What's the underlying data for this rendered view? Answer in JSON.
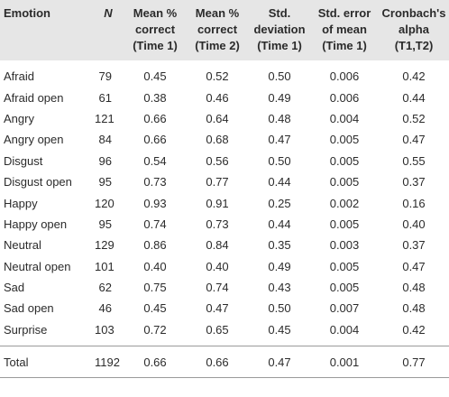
{
  "table": {
    "headers": {
      "emotion": "Emotion",
      "n": "N",
      "mean_t1": [
        "Mean %",
        "correct",
        "(Time 1)"
      ],
      "mean_t2": [
        "Mean %",
        "correct",
        "(Time 2)"
      ],
      "sd_t1": [
        "Std.",
        "deviation",
        "(Time 1)"
      ],
      "se_t1": [
        "Std. error",
        "of mean",
        "(Time 1)"
      ],
      "alpha": [
        "Cronbach's",
        "alpha",
        "(T1,T2)"
      ]
    },
    "rows": [
      {
        "emotion": "Afraid",
        "n": "79",
        "mean_t1": "0.45",
        "mean_t2": "0.52",
        "sd_t1": "0.50",
        "se_t1": "0.006",
        "alpha": "0.42"
      },
      {
        "emotion": "Afraid open",
        "n": "61",
        "mean_t1": "0.38",
        "mean_t2": "0.46",
        "sd_t1": "0.49",
        "se_t1": "0.006",
        "alpha": "0.44"
      },
      {
        "emotion": "Angry",
        "n": "121",
        "mean_t1": "0.66",
        "mean_t2": "0.64",
        "sd_t1": "0.48",
        "se_t1": "0.004",
        "alpha": "0.52"
      },
      {
        "emotion": "Angry open",
        "n": "84",
        "mean_t1": "0.66",
        "mean_t2": "0.68",
        "sd_t1": "0.47",
        "se_t1": "0.005",
        "alpha": "0.47"
      },
      {
        "emotion": "Disgust",
        "n": "96",
        "mean_t1": "0.54",
        "mean_t2": "0.56",
        "sd_t1": "0.50",
        "se_t1": "0.005",
        "alpha": "0.55"
      },
      {
        "emotion": "Disgust open",
        "n": "95",
        "mean_t1": "0.73",
        "mean_t2": "0.77",
        "sd_t1": "0.44",
        "se_t1": "0.005",
        "alpha": "0.37"
      },
      {
        "emotion": "Happy",
        "n": "120",
        "mean_t1": "0.93",
        "mean_t2": "0.91",
        "sd_t1": "0.25",
        "se_t1": "0.002",
        "alpha": "0.16"
      },
      {
        "emotion": "Happy open",
        "n": "95",
        "mean_t1": "0.74",
        "mean_t2": "0.73",
        "sd_t1": "0.44",
        "se_t1": "0.005",
        "alpha": "0.40"
      },
      {
        "emotion": "Neutral",
        "n": "129",
        "mean_t1": "0.86",
        "mean_t2": "0.84",
        "sd_t1": "0.35",
        "se_t1": "0.003",
        "alpha": "0.37"
      },
      {
        "emotion": "Neutral open",
        "n": "101",
        "mean_t1": "0.40",
        "mean_t2": "0.40",
        "sd_t1": "0.49",
        "se_t1": "0.005",
        "alpha": "0.47"
      },
      {
        "emotion": "Sad",
        "n": "62",
        "mean_t1": "0.75",
        "mean_t2": "0.74",
        "sd_t1": "0.43",
        "se_t1": "0.005",
        "alpha": "0.48"
      },
      {
        "emotion": "Sad open",
        "n": "46",
        "mean_t1": "0.45",
        "mean_t2": "0.47",
        "sd_t1": "0.50",
        "se_t1": "0.007",
        "alpha": "0.48"
      },
      {
        "emotion": "Surprise",
        "n": "103",
        "mean_t1": "0.72",
        "mean_t2": "0.65",
        "sd_t1": "0.45",
        "se_t1": "0.004",
        "alpha": "0.42"
      }
    ],
    "total": {
      "emotion": "Total",
      "n": "1192",
      "mean_t1": "0.66",
      "mean_t2": "0.66",
      "sd_t1": "0.47",
      "se_t1": "0.001",
      "alpha": "0.77"
    }
  }
}
